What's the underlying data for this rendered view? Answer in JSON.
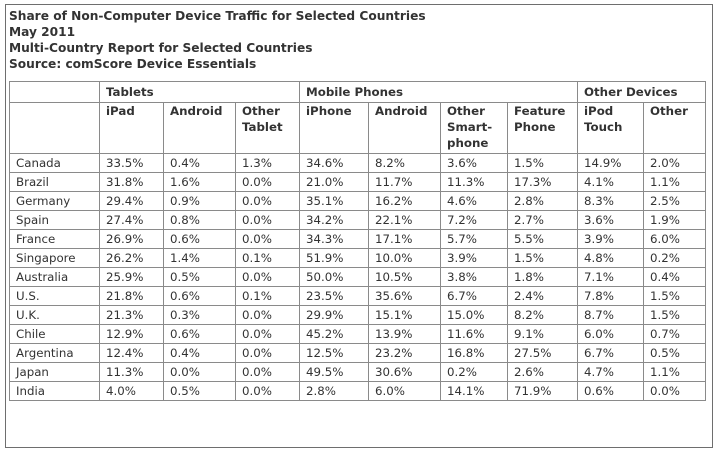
{
  "header": {
    "line1": "Share of Non-Computer Device Traffic for Selected Countries",
    "line2": "May 2011",
    "line3": "Multi-Country Report for Selected Countries",
    "line4": "Source: comScore Device Essentials"
  },
  "groups": [
    "Tablets",
    "Mobile Phones",
    "Other Devices"
  ],
  "columns": [
    {
      "label": "iPad",
      "lines": [
        "iPad"
      ]
    },
    {
      "label": "Android",
      "lines": [
        "Android"
      ]
    },
    {
      "label": "Other Tablet",
      "lines": [
        "Other",
        "Tablet"
      ]
    },
    {
      "label": "iPhone",
      "lines": [
        "iPhone"
      ]
    },
    {
      "label": "Android",
      "lines": [
        "Android"
      ]
    },
    {
      "label": "Other Smart-phone",
      "lines": [
        "Other",
        "Smart-",
        "phone"
      ]
    },
    {
      "label": "Feature Phone",
      "lines": [
        "Feature",
        "Phone"
      ]
    },
    {
      "label": "iPod Touch",
      "lines": [
        "iPod",
        "Touch"
      ]
    },
    {
      "label": "Other",
      "lines": [
        "Other"
      ]
    }
  ],
  "chart_data": {
    "type": "table",
    "title": "Share of Non-Computer Device Traffic for Selected Countries",
    "subtitle": "May 2011",
    "column_groups": [
      {
        "name": "Tablets",
        "columns": [
          "iPad",
          "Android",
          "Other Tablet"
        ]
      },
      {
        "name": "Mobile Phones",
        "columns": [
          "iPhone",
          "Android",
          "Other Smart-phone",
          "Feature Phone"
        ]
      },
      {
        "name": "Other Devices",
        "columns": [
          "iPod Touch",
          "Other"
        ]
      }
    ],
    "rows": [
      {
        "country": "Canada",
        "values": [
          "33.5%",
          "0.4%",
          "1.3%",
          "34.6%",
          "8.2%",
          "3.6%",
          "1.5%",
          "14.9%",
          "2.0%"
        ]
      },
      {
        "country": "Brazil",
        "values": [
          "31.8%",
          "1.6%",
          "0.0%",
          "21.0%",
          "11.7%",
          "11.3%",
          "17.3%",
          "4.1%",
          "1.1%"
        ]
      },
      {
        "country": "Germany",
        "values": [
          "29.4%",
          "0.9%",
          "0.0%",
          "35.1%",
          "16.2%",
          "4.6%",
          "2.8%",
          "8.3%",
          "2.5%"
        ]
      },
      {
        "country": "Spain",
        "values": [
          "27.4%",
          "0.8%",
          "0.0%",
          "34.2%",
          "22.1%",
          "7.2%",
          "2.7%",
          "3.6%",
          "1.9%"
        ]
      },
      {
        "country": "France",
        "values": [
          "26.9%",
          "0.6%",
          "0.0%",
          "34.3%",
          "17.1%",
          "5.7%",
          "5.5%",
          "3.9%",
          "6.0%"
        ]
      },
      {
        "country": "Singapore",
        "values": [
          "26.2%",
          "1.4%",
          "0.1%",
          "51.9%",
          "10.0%",
          "3.9%",
          "1.5%",
          "4.8%",
          "0.2%"
        ]
      },
      {
        "country": "Australia",
        "values": [
          "25.9%",
          "0.5%",
          "0.0%",
          "50.0%",
          "10.5%",
          "3.8%",
          "1.8%",
          "7.1%",
          "0.4%"
        ]
      },
      {
        "country": "U.S.",
        "values": [
          "21.8%",
          "0.6%",
          "0.1%",
          "23.5%",
          "35.6%",
          "6.7%",
          "2.4%",
          "7.8%",
          "1.5%"
        ]
      },
      {
        "country": "U.K.",
        "values": [
          "21.3%",
          "0.3%",
          "0.0%",
          "29.9%",
          "15.1%",
          "15.0%",
          "8.2%",
          "8.7%",
          "1.5%"
        ]
      },
      {
        "country": "Chile",
        "values": [
          "12.9%",
          "0.6%",
          "0.0%",
          "45.2%",
          "13.9%",
          "11.6%",
          "9.1%",
          "6.0%",
          "0.7%"
        ]
      },
      {
        "country": "Argentina",
        "values": [
          "12.4%",
          "0.4%",
          "0.0%",
          "12.5%",
          "23.2%",
          "16.8%",
          "27.5%",
          "6.7%",
          "0.5%"
        ]
      },
      {
        "country": "Japan",
        "values": [
          "11.3%",
          "0.0%",
          "0.0%",
          "49.5%",
          "30.6%",
          "0.2%",
          "2.6%",
          "4.7%",
          "1.1%"
        ]
      },
      {
        "country": "India",
        "values": [
          "4.0%",
          "0.5%",
          "0.0%",
          "2.8%",
          "6.0%",
          "14.1%",
          "71.9%",
          "0.6%",
          "0.0%"
        ]
      }
    ]
  }
}
